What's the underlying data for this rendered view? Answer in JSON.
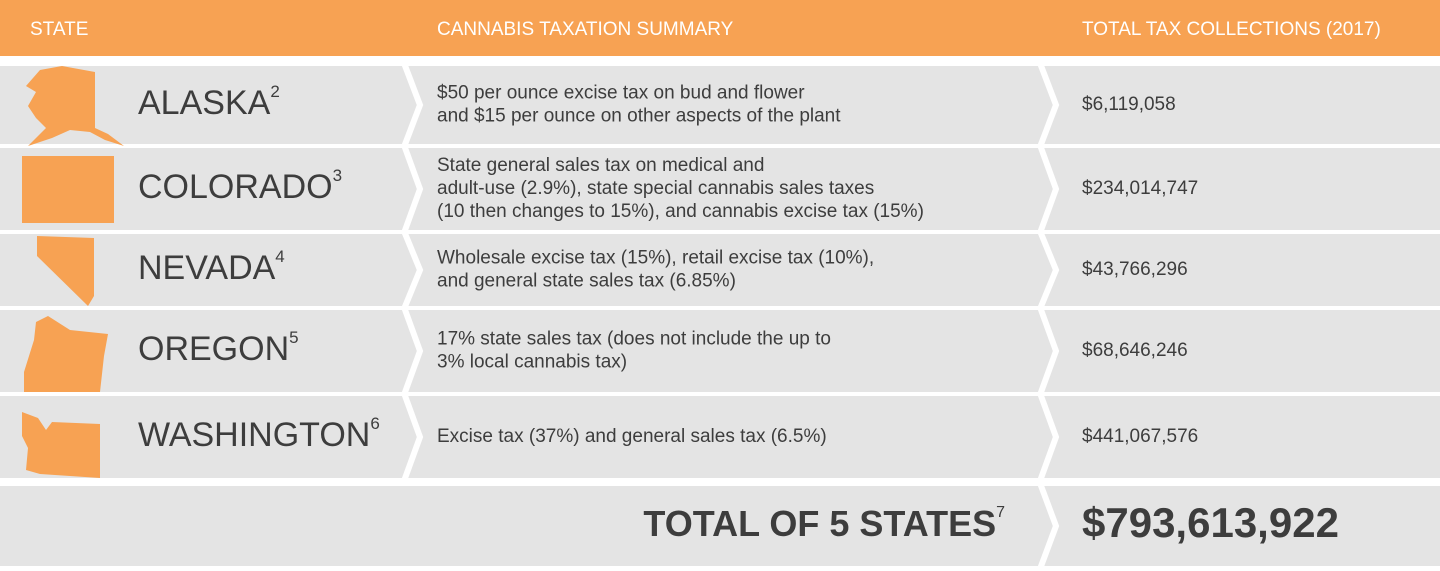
{
  "header": [
    "STATE",
    "CANNABIS TAXATION SUMMARY",
    "TOTAL TAX COLLECTIONS (2017)"
  ],
  "rows": [
    {
      "state": "ALASKA",
      "note": "2",
      "summary": [
        "$50 per ounce excise tax on bud and flower",
        "and $15 per ounce on other aspects of the plant"
      ],
      "total": "$6,119,058"
    },
    {
      "state": "COLORADO",
      "note": "3",
      "summary": [
        "State general sales tax on medical and",
        "adult-use (2.9%), state special cannabis sales taxes",
        "(10 then changes to 15%), and cannabis excise tax (15%)"
      ],
      "total": "$234,014,747"
    },
    {
      "state": "NEVADA",
      "note": "4",
      "summary": [
        "Wholesale excise tax (15%), retail excise tax (10%),",
        "and general state sales tax (6.85%)"
      ],
      "total": "$43,766,296"
    },
    {
      "state": "OREGON",
      "note": "5",
      "summary": [
        "17% state sales tax (does not include the up to",
        "3% local cannabis tax)"
      ],
      "total": "$68,646,246"
    },
    {
      "state": "WASHINGTON",
      "note": "6",
      "summary": [
        "Excise tax (37%) and general sales tax (6.5%)"
      ],
      "total": "$441,067,576"
    }
  ],
  "footer": {
    "label": "TOTAL OF 5 STATES",
    "note": "7",
    "total": "$793,613,922"
  }
}
